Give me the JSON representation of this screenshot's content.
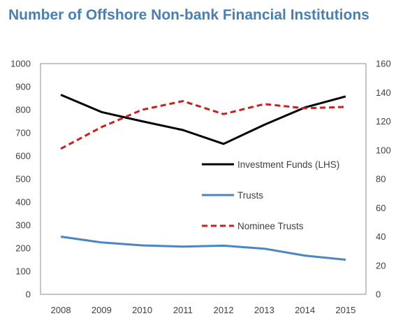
{
  "chart_data": {
    "type": "line",
    "title": "Number of Offshore Non-bank Financial Institutions",
    "x": [
      "2008",
      "2009",
      "2010",
      "2011",
      "2012",
      "2013",
      "2014",
      "2015"
    ],
    "y_left": {
      "min": 0,
      "max": 1000,
      "step": 100,
      "ticks": [
        "0",
        "100",
        "200",
        "300",
        "400",
        "500",
        "600",
        "700",
        "800",
        "900",
        "1000"
      ]
    },
    "y_right": {
      "min": 0,
      "max": 160,
      "step": 20,
      "ticks": [
        "0",
        "20",
        "40",
        "60",
        "80",
        "100",
        "120",
        "140",
        "160"
      ]
    },
    "grid": false,
    "legend_position": "right-inside",
    "series": [
      {
        "name": "Investment Funds (LHS)",
        "axis": "left",
        "color": "#000000",
        "style": "solid",
        "values": [
          865,
          790,
          750,
          712,
          652,
          735,
          810,
          858
        ]
      },
      {
        "name": "Trusts",
        "axis": "left",
        "color": "#4a86c5",
        "style": "solid",
        "values": [
          250,
          225,
          212,
          207,
          211,
          198,
          168,
          150
        ]
      },
      {
        "name": "Nominee Trusts",
        "axis": "right",
        "color": "#cc1f1f",
        "style": "dashed",
        "values": [
          101,
          116,
          128,
          134,
          125,
          132,
          129,
          130
        ]
      }
    ]
  }
}
